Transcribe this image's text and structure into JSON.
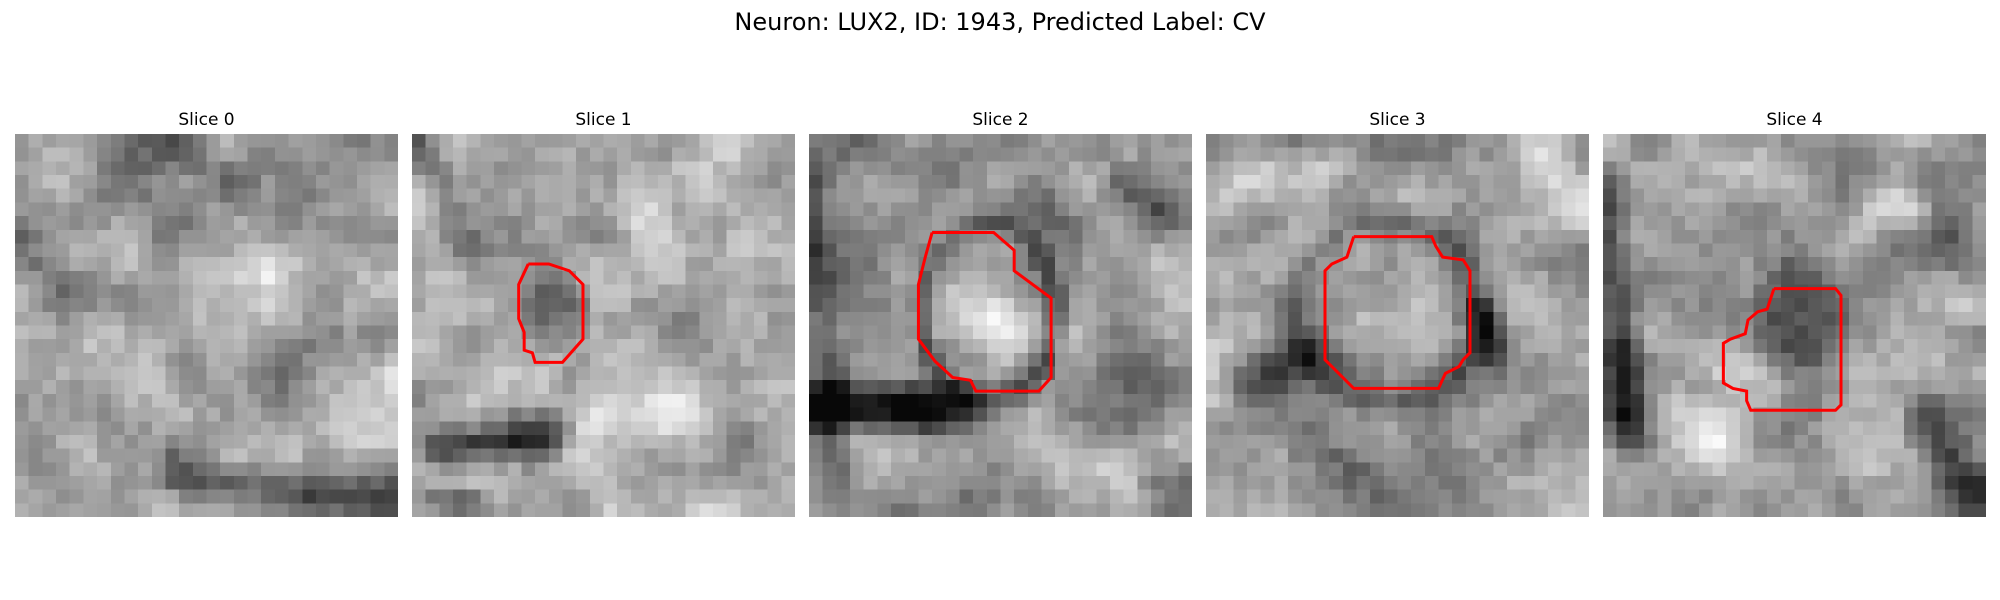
{
  "figure": {
    "title": "Neuron: LUX2, ID: 1943, Predicted Label: CV"
  },
  "contour_color": "#ff0000",
  "colormap": "grayscale",
  "slices": [
    {
      "title": "Slice 0",
      "has_contour": false
    },
    {
      "title": "Slice 1",
      "has_contour": true
    },
    {
      "title": "Slice 2",
      "has_contour": true
    },
    {
      "title": "Slice 3",
      "has_contour": true
    },
    {
      "title": "Slice 4",
      "has_contour": true
    }
  ]
}
